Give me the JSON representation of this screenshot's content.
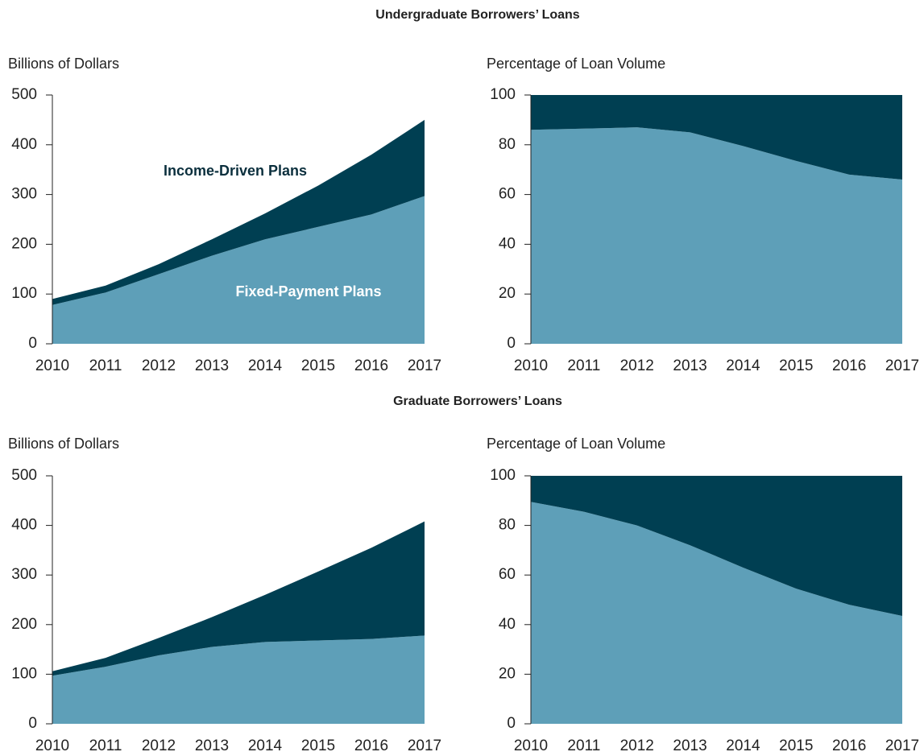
{
  "sections": [
    {
      "title": "Undergraduate Borrowers’ Loans"
    },
    {
      "title": "Graduate Borrowers’ Loans"
    }
  ],
  "chart_data": [
    {
      "type": "stacked-area",
      "ylabel": "Billions of Dollars",
      "categories": [
        "2010",
        "2011",
        "2012",
        "2013",
        "2014",
        "2015",
        "2016",
        "2017"
      ],
      "ylim": [
        0,
        500
      ],
      "yticks": [
        0,
        100,
        200,
        300,
        400,
        500
      ],
      "series": [
        {
          "name": "Fixed-Payment Plans",
          "color": "#5e9fb8",
          "values": [
            78,
            103,
            140,
            177,
            210,
            235,
            260,
            297
          ]
        },
        {
          "name": "Income-Driven Plans",
          "color": "#003f52",
          "values": [
            12,
            14,
            20,
            33,
            52,
            83,
            120,
            153
          ]
        }
      ]
    },
    {
      "type": "stacked-area",
      "ylabel": "Percentage of Loan Volume",
      "categories": [
        "2010",
        "2011",
        "2012",
        "2013",
        "2014",
        "2015",
        "2016",
        "2017"
      ],
      "ylim": [
        0,
        100
      ],
      "yticks": [
        0,
        20,
        40,
        60,
        80,
        100
      ],
      "series": [
        {
          "color": "#5e9fb8",
          "values": [
            86,
            86.5,
            87,
            85,
            79.5,
            73.5,
            68,
            66
          ]
        },
        {
          "color": "#003f52",
          "values": [
            14,
            13.5,
            13,
            15,
            20.5,
            26.5,
            32,
            34
          ]
        }
      ]
    },
    {
      "type": "stacked-area",
      "ylabel": "Billions of Dollars",
      "categories": [
        "2010",
        "2011",
        "2012",
        "2013",
        "2014",
        "2015",
        "2016",
        "2017"
      ],
      "ylim": [
        0,
        500
      ],
      "yticks": [
        0,
        100,
        200,
        300,
        400,
        500
      ],
      "series": [
        {
          "color": "#5e9fb8",
          "values": [
            97,
            115,
            138,
            155,
            165,
            168,
            171,
            178
          ]
        },
        {
          "color": "#003f52",
          "values": [
            9,
            18,
            35,
            60,
            95,
            139,
            184,
            230
          ]
        }
      ]
    },
    {
      "type": "stacked-area",
      "ylabel": "Percentage of Loan Volume",
      "categories": [
        "2010",
        "2011",
        "2012",
        "2013",
        "2014",
        "2015",
        "2016",
        "2017"
      ],
      "ylim": [
        0,
        100
      ],
      "yticks": [
        0,
        20,
        40,
        60,
        80,
        100
      ],
      "series": [
        {
          "color": "#5e9fb8",
          "values": [
            89.5,
            85.5,
            80,
            72,
            63,
            54.5,
            48,
            43.5
          ]
        },
        {
          "color": "#003f52",
          "values": [
            10.5,
            14.5,
            20,
            28,
            37,
            45.5,
            52,
            56.5
          ]
        }
      ]
    }
  ]
}
